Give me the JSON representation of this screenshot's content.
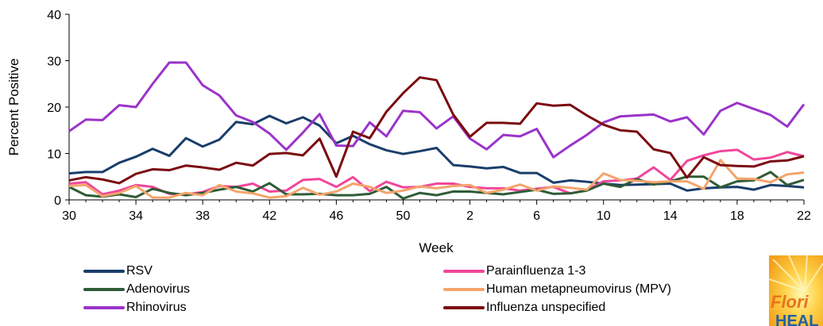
{
  "chart_data": {
    "type": "line",
    "title": "",
    "xlabel": "Week",
    "ylabel": "Percent  Positive",
    "ylim": [
      0,
      40
    ],
    "yticks": [
      "0",
      "10",
      "20",
      "30",
      "40"
    ],
    "x": [
      30,
      31,
      32,
      33,
      34,
      35,
      36,
      37,
      38,
      39,
      40,
      41,
      42,
      43,
      44,
      45,
      46,
      47,
      48,
      49,
      50,
      51,
      52,
      1,
      2,
      3,
      4,
      5,
      6,
      7,
      8,
      9,
      10,
      11,
      12,
      13,
      14,
      15,
      16,
      17,
      18,
      19,
      20,
      21,
      22
    ],
    "xtick_labels": [
      "30",
      "34",
      "38",
      "42",
      "46",
      "50",
      "2",
      "6",
      "10",
      "14",
      "18",
      "22"
    ],
    "grid": false,
    "legend_position": "bottom",
    "series": [
      {
        "name": "RSV",
        "color": "#1a3e6b",
        "values": [
          5.7,
          6,
          6,
          8,
          9.3,
          11,
          9.5,
          13.3,
          11.5,
          13,
          16.8,
          16.3,
          18.1,
          16.5,
          17.8,
          16,
          12.2,
          13.8,
          12,
          10.7,
          9.9,
          10.5,
          11.2,
          7.5,
          7.2,
          6.8,
          7.1,
          5.8,
          5.8,
          3.7,
          4.2,
          3.9,
          3.5,
          3.2,
          3.3,
          3.4,
          3.5,
          2,
          2.5,
          2.7,
          2.8,
          2.2,
          3.2,
          3,
          2.7
        ]
      },
      {
        "name": "Parainfluenza 1-3",
        "color": "#f0479a",
        "values": [
          3.5,
          3.8,
          1.2,
          2,
          3.2,
          2.8,
          1.3,
          1.2,
          1.7,
          3,
          2.8,
          3.5,
          1.8,
          2,
          4.3,
          4.5,
          2.8,
          4.9,
          1.9,
          3.9,
          2.7,
          2.8,
          3.5,
          3.5,
          2.8,
          2.5,
          2.5,
          2,
          2.4,
          2.8,
          1.4,
          2.1,
          4,
          4.2,
          4.6,
          7,
          4.3,
          8.4,
          9.6,
          10.5,
          10.8,
          8.7,
          9.1,
          10.3,
          9.4
        ]
      },
      {
        "name": "Adenovirus",
        "color": "#2f5c36",
        "values": [
          2.8,
          1,
          0.7,
          1.2,
          0.6,
          2.4,
          1.5,
          1,
          1.5,
          2.2,
          2.8,
          1.8,
          3.6,
          1.2,
          1.2,
          1.3,
          1,
          1,
          1.3,
          2.8,
          0.3,
          1.5,
          1,
          1.8,
          1.8,
          1.5,
          1.2,
          1.7,
          2.2,
          1.3,
          1.4,
          2,
          3.5,
          2.8,
          4.5,
          3.3,
          4,
          5,
          5,
          2.7,
          4,
          4.2,
          6,
          3.2,
          4.3
        ]
      },
      {
        "name": "Human metapneumovirus (MPV)",
        "color": "#f4a46c",
        "values": [
          3,
          3.2,
          0.8,
          1.5,
          3,
          0.5,
          0.5,
          1.5,
          1,
          3.2,
          1.8,
          1.4,
          0.5,
          0.8,
          2.6,
          1.1,
          1.8,
          3.5,
          2.8,
          1.5,
          2,
          2.9,
          2.5,
          3,
          3.2,
          1.5,
          2.2,
          3.3,
          2,
          2.9,
          2.6,
          2.2,
          5.7,
          4.3,
          4.1,
          3.8,
          4,
          4,
          2.4,
          8.6,
          4.6,
          4.5,
          3.8,
          5.5,
          5.9
        ]
      },
      {
        "name": "Rhinovirus",
        "color": "#9b33c9",
        "values": [
          14.8,
          17.3,
          17.2,
          20.4,
          20,
          25,
          29.6,
          29.6,
          24.7,
          22.5,
          18.2,
          16.8,
          14.3,
          10.8,
          14.5,
          18.5,
          11.7,
          11.6,
          16.7,
          13.7,
          19.2,
          18.9,
          15.4,
          18,
          13.2,
          10.9,
          14,
          13.7,
          15.3,
          9.2,
          11.7,
          14,
          16.7,
          18,
          18.2,
          18.4,
          16.9,
          17.8,
          14.1,
          19.2,
          20.9,
          19.6,
          18.3,
          15.8,
          20.6
        ]
      },
      {
        "name": "Influenza unspecified",
        "color": "#7b0b0f",
        "values": [
          4.2,
          4.9,
          4.4,
          3.6,
          5.6,
          6.6,
          6.4,
          7.4,
          7,
          6.5,
          8,
          7.4,
          9.9,
          10.1,
          9.6,
          13.2,
          5,
          14.7,
          13.3,
          19,
          23,
          26.4,
          25.8,
          18.4,
          13.6,
          16.6,
          16.6,
          16.4,
          20.8,
          20.3,
          20.5,
          18.2,
          16.2,
          15,
          14.7,
          10.9,
          10.1,
          4.8,
          9.2,
          7.5,
          7.3,
          7.2,
          8.3,
          8.5,
          9.4
        ]
      }
    ]
  },
  "logo": {
    "text": "Flori",
    "text2": "HEAL"
  }
}
